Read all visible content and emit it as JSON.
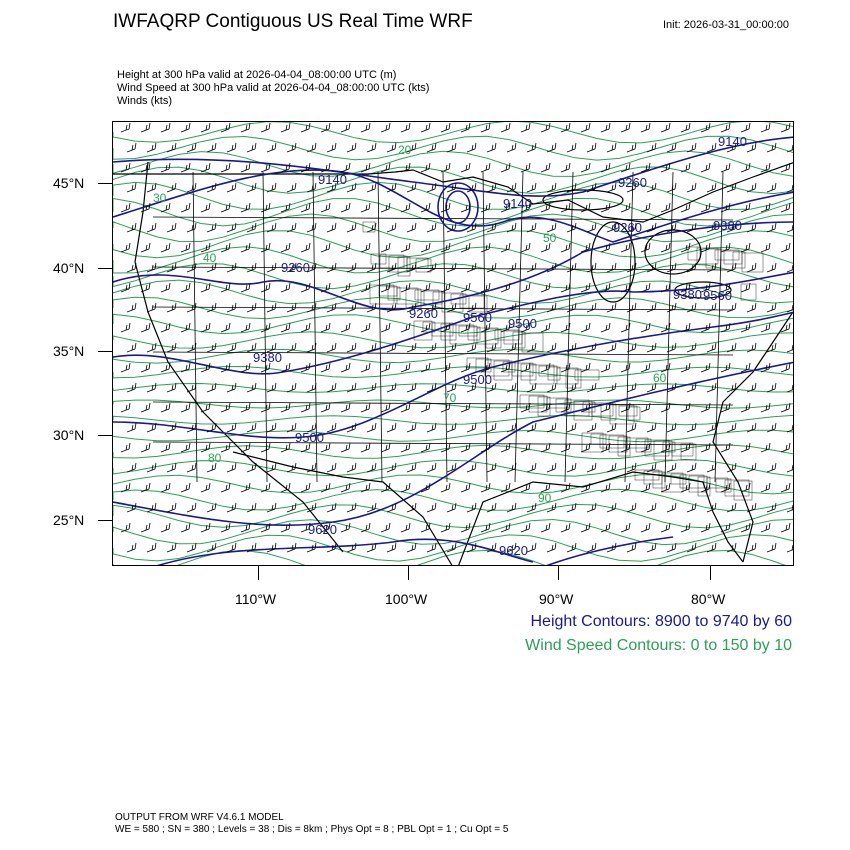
{
  "header": {
    "title": "IWFAQRP Contiguous US Real Time WRF",
    "init": "Init: 2026-03-31_00:00:00"
  },
  "subtitles": [
    "Height at 300 hPa valid at 2026-04-04_08:00:00 UTC   (m)",
    "Wind Speed at 300 hPa valid at 2026-04-04_08:00:00 UTC   (kts)",
    "Winds   (kts)"
  ],
  "axes": {
    "lat_labels": [
      "45°N",
      "40°N",
      "35°N",
      "30°N",
      "25°N"
    ],
    "lon_labels": [
      "110°W",
      "100°W",
      "90°W",
      "80°W"
    ]
  },
  "contour_labels": {
    "height": [
      "9140",
      "9140",
      "9140",
      "9260",
      "9260",
      "9260",
      "9260",
      "9380",
      "9380",
      "9380",
      "9500",
      "9500",
      "9500",
      "9560",
      "9560",
      "9620",
      "9620"
    ],
    "speed": [
      "20",
      "30",
      "40",
      "50",
      "60",
      "70",
      "80",
      "90"
    ]
  },
  "legend": {
    "height": "Height Contours: 8900 to 9740 by 60",
    "speed": "Wind Speed Contours: 0 to 150 by 10"
  },
  "footer": {
    "line1": "OUTPUT FROM WRF V4.6.1 MODEL",
    "line2": "WE = 580 ; SN = 380 ; Levels = 38 ; Dis = 8km ; Phys Opt = 8 ; PBL Opt = 1 ; Cu Opt = 5"
  },
  "colors": {
    "height_contour": "#1a1a8c",
    "speed_contour": "#2e9e5a",
    "boundaries": "#000000"
  }
}
